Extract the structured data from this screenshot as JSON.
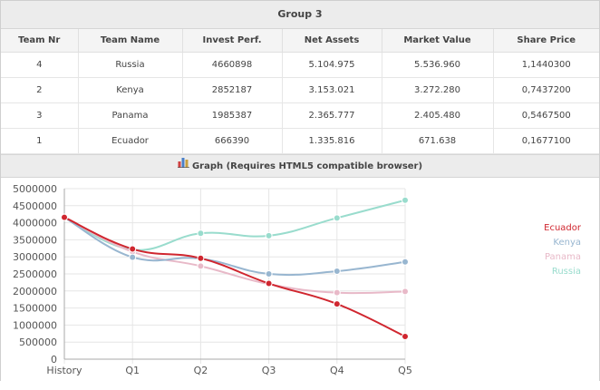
{
  "group_title": "Group 3",
  "table": {
    "columns": [
      "Team Nr",
      "Team Name",
      "Invest Perf.",
      "Net Assets",
      "Market Value",
      "Share Price"
    ],
    "rows": [
      [
        "4",
        "Russia",
        "4660898",
        "5.104.975",
        "5.536.960",
        "1,1440300"
      ],
      [
        "2",
        "Kenya",
        "2852187",
        "3.153.021",
        "3.272.280",
        "0,7437200"
      ],
      [
        "3",
        "Panama",
        "1985387",
        "2.365.777",
        "2.405.480",
        "0,5467500"
      ],
      [
        "1",
        "Ecuador",
        "666390",
        "1.335.816",
        "671.638",
        "0,1677100"
      ]
    ]
  },
  "graph_header": "Graph (Requires HTML5 compatible browser)",
  "graph_icon": "bar-chart-icon",
  "chart_data": {
    "type": "line",
    "categories": [
      "History",
      "Q1",
      "Q2",
      "Q3",
      "Q4",
      "Q5"
    ],
    "ylim": [
      0,
      5000000
    ],
    "yticks": [
      0,
      500000,
      1000000,
      1500000,
      2000000,
      2500000,
      3000000,
      3500000,
      4000000,
      4500000,
      5000000
    ],
    "grid": true,
    "legend_position": "right",
    "series": [
      {
        "name": "Ecuador",
        "color": "#d0262f",
        "values": [
          4160000,
          3230000,
          2960000,
          2220000,
          1620000,
          666390
        ]
      },
      {
        "name": "Kenya",
        "color": "#98b6d0",
        "values": [
          4160000,
          2990000,
          2950000,
          2500000,
          2580000,
          2852187
        ]
      },
      {
        "name": "Panama",
        "color": "#e8b9c8",
        "values": [
          4160000,
          3150000,
          2730000,
          2200000,
          1950000,
          1985387
        ]
      },
      {
        "name": "Russia",
        "color": "#99dccd",
        "values": [
          4160000,
          3210000,
          3690000,
          3620000,
          4140000,
          4660898
        ]
      }
    ]
  }
}
